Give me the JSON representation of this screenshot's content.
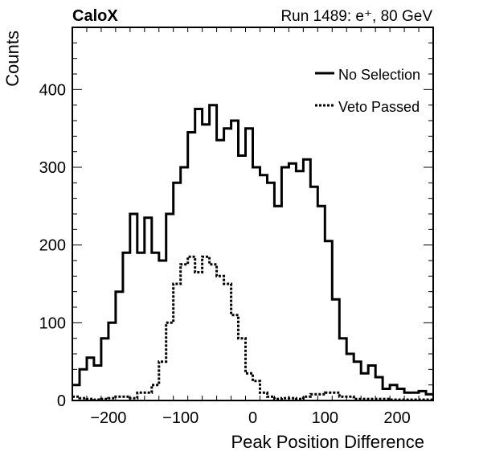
{
  "chart_data": {
    "type": "line",
    "title_left": "CaloX",
    "title_right": "Run 1489: e⁺, 80 GeV",
    "xlabel": "Peak Position Difference",
    "ylabel": "Counts",
    "xlim": [
      -250,
      250
    ],
    "ylim": [
      0,
      480
    ],
    "x_ticks": [
      -200,
      -100,
      0,
      100,
      200
    ],
    "x_tick_labels": [
      "−200",
      "−100",
      "0",
      "100",
      "200"
    ],
    "y_ticks": [
      0,
      100,
      200,
      300,
      400
    ],
    "y_tick_labels": [
      "0",
      "100",
      "200",
      "300",
      "400"
    ],
    "legend_position": "top-right",
    "bin_edges_start": -250,
    "bin_width": 10,
    "series": [
      {
        "name": "No Selection",
        "style": "solid",
        "values": [
          20,
          40,
          55,
          45,
          80,
          100,
          140,
          190,
          240,
          190,
          235,
          190,
          180,
          240,
          280,
          300,
          345,
          375,
          355,
          380,
          335,
          350,
          360,
          315,
          350,
          300,
          290,
          280,
          250,
          300,
          305,
          295,
          310,
          275,
          250,
          205,
          130,
          80,
          60,
          50,
          35,
          45,
          30,
          15,
          20,
          15,
          10,
          10,
          12,
          8
        ]
      },
      {
        "name": "Veto Passed",
        "style": "dotted",
        "values": [
          5,
          3,
          2,
          1,
          2,
          3,
          5,
          5,
          3,
          10,
          10,
          20,
          50,
          100,
          150,
          175,
          185,
          165,
          185,
          175,
          160,
          150,
          110,
          80,
          35,
          25,
          10,
          5,
          2,
          3,
          3,
          2,
          5,
          8,
          8,
          10,
          10,
          5,
          5,
          2,
          2,
          2,
          2,
          2,
          1,
          1,
          1,
          1,
          1,
          1
        ]
      }
    ]
  }
}
